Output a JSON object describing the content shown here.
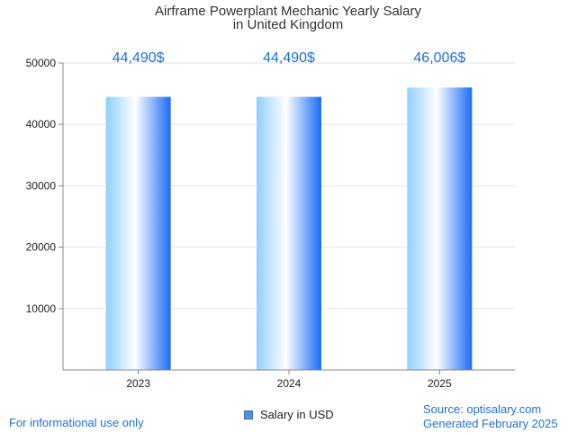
{
  "chart_data": {
    "type": "bar",
    "title_lines": [
      "Airframe Powerplant Mechanic Yearly Salary",
      "in United Kingdom"
    ],
    "categories": [
      "2023",
      "2024",
      "2025"
    ],
    "series": [
      {
        "name": "Salary in USD",
        "values": [
          44490,
          44490,
          46006
        ]
      }
    ],
    "data_labels": [
      "44,490$",
      "44,490$",
      "46,006$"
    ],
    "y_ticks": [
      10000,
      20000,
      30000,
      40000,
      50000
    ],
    "ylim": [
      0,
      50000
    ],
    "grid": true,
    "legend_position": "bottom",
    "colors": {
      "bar_light": "#8fd0ff",
      "bar_mid": "#ffffff",
      "bar_dark": "#1a6cf5",
      "label": "#1f6fd6",
      "grid": "#e3e3e3",
      "axis": "#888888"
    }
  },
  "footer": {
    "disclaimer": "For informational use only",
    "source": "Source: optisalary.com",
    "generated": "Generated February 2025"
  }
}
